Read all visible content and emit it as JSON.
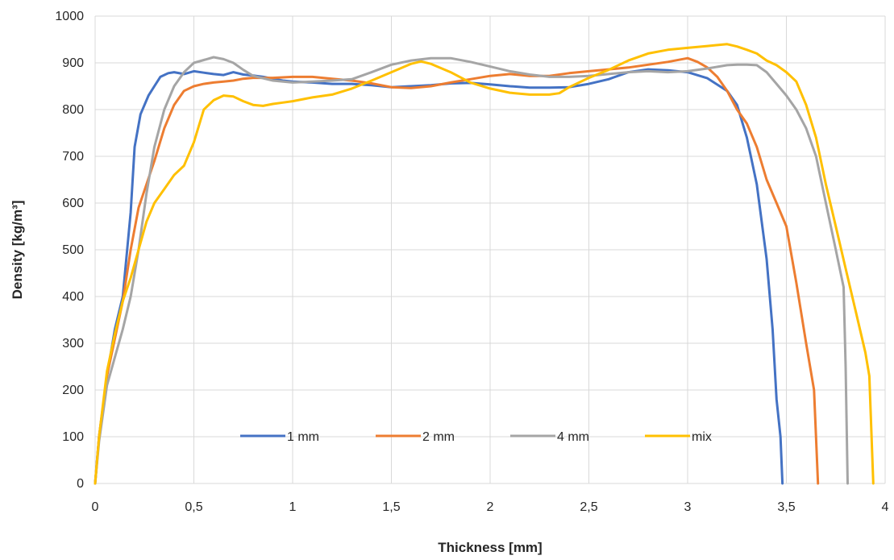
{
  "chart_data": {
    "type": "line",
    "title": "",
    "xlabel": "Thickness [mm]",
    "ylabel": "Density [kg/m³]",
    "xlim": [
      0,
      4
    ],
    "ylim": [
      0,
      1000
    ],
    "x_ticks": [
      "0",
      "0,5",
      "1",
      "1,5",
      "2",
      "2,5",
      "3",
      "3,5",
      "4"
    ],
    "y_ticks": [
      "0",
      "100",
      "200",
      "300",
      "400",
      "500",
      "600",
      "700",
      "800",
      "900",
      "1000"
    ],
    "grid": "both",
    "legend_position": "bottom-inside",
    "series": [
      {
        "name": "1 mm",
        "color": "#4472C4",
        "points": [
          [
            0,
            0
          ],
          [
            0.02,
            100
          ],
          [
            0.06,
            230
          ],
          [
            0.1,
            330
          ],
          [
            0.14,
            400
          ],
          [
            0.18,
            580
          ],
          [
            0.2,
            720
          ],
          [
            0.23,
            790
          ],
          [
            0.27,
            830
          ],
          [
            0.3,
            850
          ],
          [
            0.33,
            870
          ],
          [
            0.37,
            878
          ],
          [
            0.4,
            880
          ],
          [
            0.45,
            876
          ],
          [
            0.5,
            882
          ],
          [
            0.55,
            879
          ],
          [
            0.6,
            876
          ],
          [
            0.65,
            874
          ],
          [
            0.7,
            880
          ],
          [
            0.75,
            875
          ],
          [
            0.8,
            873
          ],
          [
            0.85,
            870
          ],
          [
            0.9,
            866
          ],
          [
            0.95,
            862
          ],
          [
            1.0,
            860
          ],
          [
            1.1,
            858
          ],
          [
            1.2,
            855
          ],
          [
            1.3,
            855
          ],
          [
            1.4,
            852
          ],
          [
            1.5,
            848
          ],
          [
            1.6,
            850
          ],
          [
            1.7,
            852
          ],
          [
            1.8,
            856
          ],
          [
            1.9,
            857
          ],
          [
            2.0,
            854
          ],
          [
            2.1,
            850
          ],
          [
            2.2,
            847
          ],
          [
            2.3,
            847
          ],
          [
            2.4,
            848
          ],
          [
            2.5,
            855
          ],
          [
            2.6,
            865
          ],
          [
            2.7,
            880
          ],
          [
            2.8,
            886
          ],
          [
            2.9,
            884
          ],
          [
            3.0,
            880
          ],
          [
            3.1,
            867
          ],
          [
            3.2,
            840
          ],
          [
            3.25,
            810
          ],
          [
            3.3,
            740
          ],
          [
            3.35,
            640
          ],
          [
            3.4,
            480
          ],
          [
            3.43,
            330
          ],
          [
            3.45,
            180
          ],
          [
            3.47,
            100
          ],
          [
            3.48,
            0
          ]
        ]
      },
      {
        "name": "2 mm",
        "color": "#ED7D31",
        "points": [
          [
            0,
            0
          ],
          [
            0.02,
            100
          ],
          [
            0.06,
            230
          ],
          [
            0.1,
            310
          ],
          [
            0.14,
            390
          ],
          [
            0.18,
            500
          ],
          [
            0.22,
            590
          ],
          [
            0.26,
            640
          ],
          [
            0.3,
            690
          ],
          [
            0.35,
            760
          ],
          [
            0.4,
            810
          ],
          [
            0.45,
            840
          ],
          [
            0.5,
            850
          ],
          [
            0.55,
            855
          ],
          [
            0.6,
            858
          ],
          [
            0.65,
            860
          ],
          [
            0.7,
            862
          ],
          [
            0.75,
            866
          ],
          [
            0.8,
            868
          ],
          [
            0.9,
            868
          ],
          [
            1.0,
            870
          ],
          [
            1.1,
            870
          ],
          [
            1.2,
            866
          ],
          [
            1.3,
            862
          ],
          [
            1.4,
            856
          ],
          [
            1.5,
            848
          ],
          [
            1.6,
            846
          ],
          [
            1.7,
            850
          ],
          [
            1.8,
            858
          ],
          [
            1.9,
            865
          ],
          [
            2.0,
            872
          ],
          [
            2.1,
            876
          ],
          [
            2.2,
            872
          ],
          [
            2.3,
            872
          ],
          [
            2.4,
            878
          ],
          [
            2.5,
            882
          ],
          [
            2.6,
            886
          ],
          [
            2.7,
            890
          ],
          [
            2.8,
            896
          ],
          [
            2.9,
            902
          ],
          [
            3.0,
            910
          ],
          [
            3.05,
            902
          ],
          [
            3.1,
            890
          ],
          [
            3.15,
            870
          ],
          [
            3.2,
            840
          ],
          [
            3.25,
            800
          ],
          [
            3.3,
            770
          ],
          [
            3.35,
            720
          ],
          [
            3.4,
            650
          ],
          [
            3.45,
            600
          ],
          [
            3.5,
            550
          ],
          [
            3.55,
            430
          ],
          [
            3.6,
            300
          ],
          [
            3.64,
            200
          ],
          [
            3.66,
            0
          ]
        ]
      },
      {
        "name": "4 mm",
        "color": "#A5A5A5",
        "points": [
          [
            0,
            0
          ],
          [
            0.02,
            90
          ],
          [
            0.06,
            210
          ],
          [
            0.1,
            270
          ],
          [
            0.14,
            330
          ],
          [
            0.18,
            400
          ],
          [
            0.22,
            500
          ],
          [
            0.26,
            620
          ],
          [
            0.3,
            720
          ],
          [
            0.35,
            800
          ],
          [
            0.4,
            850
          ],
          [
            0.45,
            880
          ],
          [
            0.5,
            900
          ],
          [
            0.55,
            906
          ],
          [
            0.6,
            912
          ],
          [
            0.65,
            908
          ],
          [
            0.7,
            900
          ],
          [
            0.75,
            885
          ],
          [
            0.8,
            872
          ],
          [
            0.9,
            862
          ],
          [
            1.0,
            858
          ],
          [
            1.1,
            860
          ],
          [
            1.2,
            862
          ],
          [
            1.3,
            865
          ],
          [
            1.4,
            880
          ],
          [
            1.5,
            896
          ],
          [
            1.6,
            905
          ],
          [
            1.7,
            910
          ],
          [
            1.8,
            910
          ],
          [
            1.9,
            902
          ],
          [
            2.0,
            892
          ],
          [
            2.1,
            882
          ],
          [
            2.2,
            875
          ],
          [
            2.3,
            870
          ],
          [
            2.4,
            870
          ],
          [
            2.5,
            872
          ],
          [
            2.6,
            876
          ],
          [
            2.7,
            880
          ],
          [
            2.8,
            882
          ],
          [
            2.9,
            880
          ],
          [
            3.0,
            882
          ],
          [
            3.1,
            888
          ],
          [
            3.2,
            895
          ],
          [
            3.25,
            896
          ],
          [
            3.3,
            896
          ],
          [
            3.35,
            895
          ],
          [
            3.4,
            880
          ],
          [
            3.45,
            855
          ],
          [
            3.5,
            830
          ],
          [
            3.55,
            800
          ],
          [
            3.6,
            760
          ],
          [
            3.65,
            700
          ],
          [
            3.7,
            600
          ],
          [
            3.75,
            500
          ],
          [
            3.79,
            420
          ],
          [
            3.8,
            250
          ],
          [
            3.81,
            0
          ]
        ]
      },
      {
        "name": "mix",
        "color": "#FFC000",
        "points": [
          [
            0,
            0
          ],
          [
            0.02,
            100
          ],
          [
            0.06,
            240
          ],
          [
            0.1,
            320
          ],
          [
            0.14,
            390
          ],
          [
            0.18,
            440
          ],
          [
            0.22,
            500
          ],
          [
            0.26,
            560
          ],
          [
            0.3,
            600
          ],
          [
            0.35,
            630
          ],
          [
            0.4,
            660
          ],
          [
            0.45,
            680
          ],
          [
            0.5,
            730
          ],
          [
            0.55,
            800
          ],
          [
            0.6,
            820
          ],
          [
            0.65,
            830
          ],
          [
            0.7,
            828
          ],
          [
            0.75,
            818
          ],
          [
            0.8,
            810
          ],
          [
            0.85,
            808
          ],
          [
            0.9,
            812
          ],
          [
            0.95,
            815
          ],
          [
            1.0,
            818
          ],
          [
            1.1,
            826
          ],
          [
            1.2,
            832
          ],
          [
            1.3,
            845
          ],
          [
            1.4,
            862
          ],
          [
            1.5,
            880
          ],
          [
            1.6,
            898
          ],
          [
            1.65,
            903
          ],
          [
            1.7,
            898
          ],
          [
            1.8,
            880
          ],
          [
            1.9,
            858
          ],
          [
            2.0,
            845
          ],
          [
            2.1,
            836
          ],
          [
            2.2,
            832
          ],
          [
            2.3,
            832
          ],
          [
            2.35,
            835
          ],
          [
            2.4,
            848
          ],
          [
            2.5,
            868
          ],
          [
            2.6,
            885
          ],
          [
            2.7,
            905
          ],
          [
            2.8,
            920
          ],
          [
            2.9,
            928
          ],
          [
            3.0,
            932
          ],
          [
            3.1,
            936
          ],
          [
            3.2,
            940
          ],
          [
            3.25,
            935
          ],
          [
            3.3,
            928
          ],
          [
            3.35,
            920
          ],
          [
            3.4,
            905
          ],
          [
            3.45,
            895
          ],
          [
            3.5,
            880
          ],
          [
            3.55,
            860
          ],
          [
            3.6,
            810
          ],
          [
            3.65,
            740
          ],
          [
            3.7,
            640
          ],
          [
            3.75,
            550
          ],
          [
            3.8,
            460
          ],
          [
            3.85,
            370
          ],
          [
            3.9,
            280
          ],
          [
            3.92,
            230
          ],
          [
            3.94,
            0
          ]
        ]
      }
    ]
  }
}
